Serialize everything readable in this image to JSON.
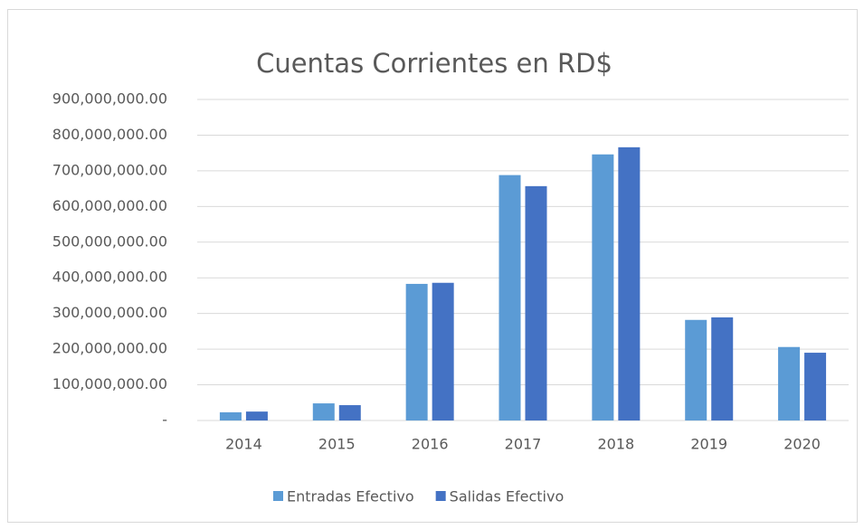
{
  "chart_data": {
    "type": "bar",
    "title": "Cuentas  Corrientes en RD$",
    "categories": [
      "2014",
      "2015",
      "2016",
      "2017",
      "2018",
      "2019",
      "2020"
    ],
    "series": [
      {
        "name": "Entradas Efectivo",
        "color": "#5b9bd5",
        "values": [
          23000000,
          48000000,
          383000000,
          688000000,
          746000000,
          282000000,
          206000000
        ]
      },
      {
        "name": "Salidas Efectivo",
        "color": "#4472c4",
        "values": [
          25000000,
          43000000,
          386000000,
          657000000,
          766000000,
          289000000,
          190000000
        ]
      }
    ],
    "ylim": [
      0,
      900000000
    ],
    "yticks": [
      {
        "value": 0,
        "label": "-"
      },
      {
        "value": 100000000,
        "label": "100,000,000.00"
      },
      {
        "value": 200000000,
        "label": "200,000,000.00"
      },
      {
        "value": 300000000,
        "label": "300,000,000.00"
      },
      {
        "value": 400000000,
        "label": "400,000,000.00"
      },
      {
        "value": 500000000,
        "label": "500,000,000.00"
      },
      {
        "value": 600000000,
        "label": "600,000,000.00"
      },
      {
        "value": 700000000,
        "label": "700,000,000.00"
      },
      {
        "value": 800000000,
        "label": "800,000,000.00"
      },
      {
        "value": 900000000,
        "label": "900,000,000.00"
      }
    ],
    "grid": true,
    "legend": "bottom"
  }
}
